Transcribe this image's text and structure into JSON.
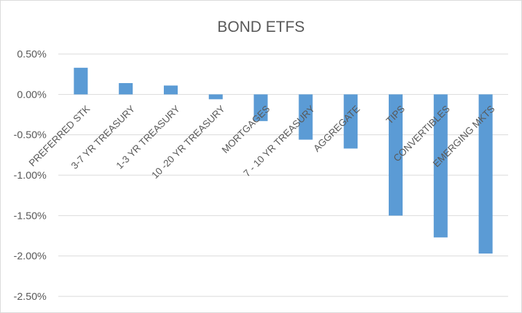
{
  "chart_data": {
    "type": "bar",
    "title": "BOND ETFS",
    "xlabel": "",
    "ylabel": "",
    "categories": [
      "PREFERRED STK",
      "3-7 YR TREASURY",
      "1-3 YR TREASURY",
      "10 -20 YR TREASURY",
      "MORTGAGES",
      "7 - 10 YR TREASURY",
      "AGGREGATE",
      "TIPS",
      "CONVERTIBLES",
      "EMERGING MKTS"
    ],
    "values": [
      0.33,
      0.14,
      0.11,
      -0.06,
      -0.33,
      -0.56,
      -0.67,
      -1.5,
      -1.77,
      -1.97
    ],
    "ylim": [
      -2.5,
      0.5
    ],
    "yticks": [
      0.5,
      0.0,
      -0.5,
      -1.0,
      -1.5,
      -2.0,
      -2.5
    ],
    "ytick_labels": [
      "0.50%",
      "0.00%",
      "-0.50%",
      "-1.00%",
      "-1.50%",
      "-2.00%",
      "-2.50%"
    ],
    "grid": true,
    "legend": "none",
    "colors": {
      "bar": "#5b9bd5",
      "grid": "#d9d9d9",
      "text": "#595959"
    }
  }
}
